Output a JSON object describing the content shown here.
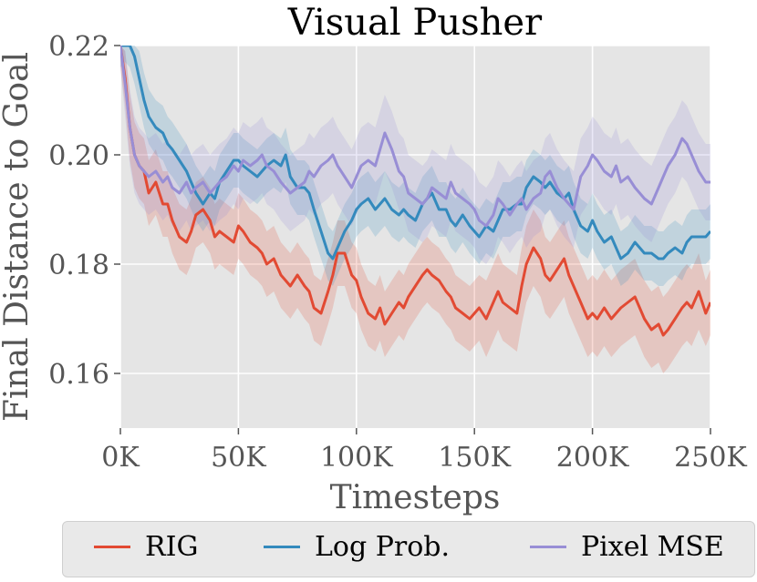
{
  "chart_data": {
    "type": "line",
    "title": "Visual Pusher",
    "xlabel": "Timesteps",
    "ylabel": "Final Distance to Goal",
    "xlim": [
      0,
      250000
    ],
    "ylim": [
      0.15,
      0.22
    ],
    "x_ticks": [
      0,
      50000,
      100000,
      150000,
      200000,
      250000
    ],
    "x_tick_labels": [
      "0K",
      "50K",
      "100K",
      "150K",
      "200K",
      "250K"
    ],
    "y_ticks": [
      0.16,
      0.18,
      0.2,
      0.22
    ],
    "y_tick_labels": [
      "0.16",
      "0.18",
      "0.20",
      "0.22"
    ],
    "grid": true,
    "legend_position": "bottom",
    "series": [
      {
        "name": "RIG",
        "color": "#e24a33",
        "x": [
          0,
          2,
          4,
          6,
          8,
          10,
          12,
          15,
          18,
          20,
          22,
          25,
          28,
          30,
          32,
          35,
          38,
          40,
          42,
          45,
          48,
          50,
          52,
          55,
          58,
          60,
          62,
          65,
          68,
          70,
          72,
          75,
          78,
          80,
          82,
          85,
          88,
          90,
          92,
          95,
          98,
          100,
          102,
          105,
          108,
          110,
          112,
          115,
          118,
          120,
          122,
          125,
          128,
          130,
          132,
          135,
          138,
          140,
          142,
          145,
          148,
          150,
          152,
          155,
          158,
          160,
          162,
          165,
          168,
          170,
          172,
          175,
          178,
          180,
          182,
          185,
          188,
          190,
          192,
          195,
          198,
          200,
          202,
          205,
          208,
          210,
          212,
          215,
          218,
          220,
          222,
          225,
          228,
          230,
          232,
          235,
          238,
          240,
          242,
          245,
          248,
          250
        ],
        "values": [
          0.22,
          0.214,
          0.205,
          0.2,
          0.198,
          0.197,
          0.193,
          0.195,
          0.191,
          0.191,
          0.188,
          0.185,
          0.184,
          0.186,
          0.189,
          0.19,
          0.188,
          0.185,
          0.186,
          0.185,
          0.184,
          0.187,
          0.186,
          0.184,
          0.183,
          0.182,
          0.18,
          0.181,
          0.178,
          0.177,
          0.176,
          0.178,
          0.176,
          0.175,
          0.172,
          0.171,
          0.175,
          0.178,
          0.182,
          0.182,
          0.178,
          0.177,
          0.174,
          0.171,
          0.17,
          0.172,
          0.169,
          0.171,
          0.173,
          0.172,
          0.174,
          0.176,
          0.178,
          0.179,
          0.178,
          0.177,
          0.175,
          0.174,
          0.172,
          0.171,
          0.17,
          0.171,
          0.172,
          0.17,
          0.173,
          0.175,
          0.173,
          0.172,
          0.171,
          0.176,
          0.18,
          0.183,
          0.181,
          0.178,
          0.177,
          0.179,
          0.181,
          0.178,
          0.176,
          0.173,
          0.17,
          0.171,
          0.17,
          0.172,
          0.17,
          0.171,
          0.172,
          0.173,
          0.174,
          0.172,
          0.17,
          0.168,
          0.169,
          0.167,
          0.168,
          0.17,
          0.172,
          0.173,
          0.172,
          0.175,
          0.171,
          0.173
        ],
        "band": [
          0.004,
          0.005,
          0.006,
          0.006,
          0.006,
          0.006,
          0.006,
          0.006,
          0.006,
          0.006,
          0.006,
          0.006,
          0.006,
          0.006,
          0.006,
          0.006,
          0.006,
          0.006,
          0.006,
          0.006,
          0.006,
          0.006,
          0.006,
          0.006,
          0.006,
          0.006,
          0.006,
          0.006,
          0.006,
          0.006,
          0.006,
          0.006,
          0.006,
          0.006,
          0.006,
          0.006,
          0.006,
          0.006,
          0.006,
          0.006,
          0.006,
          0.006,
          0.006,
          0.006,
          0.006,
          0.006,
          0.006,
          0.006,
          0.006,
          0.006,
          0.006,
          0.006,
          0.006,
          0.006,
          0.006,
          0.006,
          0.006,
          0.006,
          0.006,
          0.006,
          0.006,
          0.006,
          0.006,
          0.007,
          0.007,
          0.007,
          0.007,
          0.007,
          0.007,
          0.007,
          0.007,
          0.007,
          0.007,
          0.007,
          0.007,
          0.007,
          0.007,
          0.007,
          0.007,
          0.007,
          0.007,
          0.007,
          0.007,
          0.007,
          0.007,
          0.007,
          0.007,
          0.007,
          0.007,
          0.007,
          0.007,
          0.007,
          0.007,
          0.007,
          0.007,
          0.007,
          0.007,
          0.007,
          0.007,
          0.007,
          0.006,
          0.006
        ]
      },
      {
        "name": "Log Prob.",
        "color": "#348abd",
        "x": [
          0,
          2,
          4,
          6,
          8,
          10,
          12,
          15,
          18,
          20,
          22,
          25,
          28,
          30,
          32,
          35,
          38,
          40,
          42,
          45,
          48,
          50,
          52,
          55,
          58,
          60,
          62,
          65,
          68,
          70,
          72,
          75,
          78,
          80,
          82,
          85,
          88,
          90,
          92,
          95,
          98,
          100,
          102,
          105,
          108,
          110,
          112,
          115,
          118,
          120,
          122,
          125,
          128,
          130,
          132,
          135,
          138,
          140,
          142,
          145,
          148,
          150,
          152,
          155,
          158,
          160,
          162,
          165,
          168,
          170,
          172,
          175,
          178,
          180,
          182,
          185,
          188,
          190,
          192,
          195,
          198,
          200,
          202,
          205,
          208,
          210,
          212,
          215,
          218,
          220,
          222,
          225,
          228,
          230,
          232,
          235,
          238,
          240,
          242,
          245,
          248,
          250
        ],
        "values": [
          0.22,
          0.222,
          0.221,
          0.218,
          0.214,
          0.21,
          0.207,
          0.205,
          0.204,
          0.202,
          0.201,
          0.199,
          0.197,
          0.195,
          0.193,
          0.191,
          0.193,
          0.192,
          0.195,
          0.197,
          0.199,
          0.199,
          0.198,
          0.197,
          0.196,
          0.197,
          0.198,
          0.199,
          0.198,
          0.2,
          0.196,
          0.194,
          0.194,
          0.193,
          0.19,
          0.186,
          0.182,
          0.181,
          0.183,
          0.186,
          0.188,
          0.19,
          0.191,
          0.192,
          0.19,
          0.191,
          0.192,
          0.19,
          0.189,
          0.19,
          0.189,
          0.188,
          0.191,
          0.192,
          0.193,
          0.19,
          0.19,
          0.188,
          0.187,
          0.189,
          0.187,
          0.186,
          0.185,
          0.187,
          0.186,
          0.188,
          0.19,
          0.19,
          0.191,
          0.191,
          0.194,
          0.196,
          0.195,
          0.194,
          0.195,
          0.193,
          0.192,
          0.193,
          0.19,
          0.187,
          0.186,
          0.188,
          0.186,
          0.184,
          0.185,
          0.183,
          0.181,
          0.182,
          0.184,
          0.183,
          0.182,
          0.182,
          0.181,
          0.181,
          0.182,
          0.183,
          0.182,
          0.184,
          0.185,
          0.185,
          0.185,
          0.186
        ],
        "band": [
          0.004,
          0.005,
          0.005,
          0.005,
          0.005,
          0.005,
          0.005,
          0.005,
          0.005,
          0.005,
          0.005,
          0.005,
          0.005,
          0.005,
          0.005,
          0.005,
          0.005,
          0.005,
          0.005,
          0.005,
          0.005,
          0.005,
          0.005,
          0.005,
          0.005,
          0.005,
          0.005,
          0.005,
          0.005,
          0.005,
          0.005,
          0.005,
          0.005,
          0.005,
          0.005,
          0.005,
          0.005,
          0.005,
          0.005,
          0.005,
          0.005,
          0.005,
          0.005,
          0.005,
          0.005,
          0.005,
          0.005,
          0.005,
          0.005,
          0.005,
          0.005,
          0.005,
          0.005,
          0.005,
          0.005,
          0.005,
          0.005,
          0.005,
          0.005,
          0.005,
          0.005,
          0.005,
          0.005,
          0.005,
          0.005,
          0.005,
          0.005,
          0.005,
          0.005,
          0.005,
          0.005,
          0.005,
          0.005,
          0.005,
          0.005,
          0.005,
          0.005,
          0.005,
          0.005,
          0.005,
          0.005,
          0.005,
          0.005,
          0.005,
          0.005,
          0.005,
          0.005,
          0.005,
          0.005,
          0.005,
          0.005,
          0.005,
          0.005,
          0.005,
          0.005,
          0.005,
          0.005,
          0.005,
          0.005,
          0.005,
          0.005,
          0.005
        ]
      },
      {
        "name": "Pixel MSE",
        "color": "#988ed5",
        "x": [
          0,
          2,
          4,
          6,
          8,
          10,
          12,
          15,
          18,
          20,
          22,
          25,
          28,
          30,
          32,
          35,
          38,
          40,
          42,
          45,
          48,
          50,
          52,
          55,
          58,
          60,
          62,
          65,
          68,
          70,
          72,
          75,
          78,
          80,
          82,
          85,
          88,
          90,
          92,
          95,
          98,
          100,
          102,
          105,
          108,
          110,
          112,
          115,
          118,
          120,
          122,
          125,
          128,
          130,
          132,
          135,
          138,
          140,
          142,
          145,
          148,
          150,
          152,
          155,
          158,
          160,
          162,
          165,
          168,
          170,
          172,
          175,
          178,
          180,
          182,
          185,
          188,
          190,
          192,
          195,
          198,
          200,
          202,
          205,
          208,
          210,
          212,
          215,
          218,
          220,
          222,
          225,
          228,
          230,
          232,
          235,
          238,
          240,
          242,
          245,
          248,
          250
        ],
        "values": [
          0.22,
          0.213,
          0.205,
          0.2,
          0.198,
          0.197,
          0.196,
          0.197,
          0.195,
          0.196,
          0.194,
          0.193,
          0.195,
          0.193,
          0.194,
          0.195,
          0.193,
          0.194,
          0.195,
          0.196,
          0.198,
          0.197,
          0.199,
          0.198,
          0.199,
          0.2,
          0.198,
          0.197,
          0.195,
          0.194,
          0.193,
          0.194,
          0.195,
          0.197,
          0.196,
          0.198,
          0.199,
          0.2,
          0.198,
          0.196,
          0.194,
          0.196,
          0.198,
          0.199,
          0.198,
          0.201,
          0.204,
          0.201,
          0.197,
          0.196,
          0.193,
          0.192,
          0.191,
          0.192,
          0.194,
          0.193,
          0.192,
          0.195,
          0.193,
          0.192,
          0.191,
          0.19,
          0.188,
          0.187,
          0.189,
          0.192,
          0.191,
          0.189,
          0.191,
          0.192,
          0.19,
          0.192,
          0.193,
          0.196,
          0.197,
          0.194,
          0.192,
          0.191,
          0.19,
          0.196,
          0.198,
          0.2,
          0.199,
          0.197,
          0.196,
          0.198,
          0.195,
          0.196,
          0.194,
          0.193,
          0.192,
          0.191,
          0.194,
          0.196,
          0.198,
          0.2,
          0.203,
          0.202,
          0.2,
          0.197,
          0.195,
          0.195
        ],
        "band": [
          0.004,
          0.006,
          0.007,
          0.007,
          0.007,
          0.007,
          0.007,
          0.007,
          0.007,
          0.007,
          0.007,
          0.007,
          0.007,
          0.007,
          0.007,
          0.007,
          0.007,
          0.007,
          0.007,
          0.007,
          0.007,
          0.007,
          0.007,
          0.007,
          0.007,
          0.007,
          0.007,
          0.007,
          0.007,
          0.007,
          0.007,
          0.007,
          0.007,
          0.007,
          0.007,
          0.007,
          0.007,
          0.007,
          0.007,
          0.007,
          0.007,
          0.007,
          0.007,
          0.007,
          0.007,
          0.007,
          0.007,
          0.007,
          0.007,
          0.007,
          0.007,
          0.007,
          0.007,
          0.007,
          0.007,
          0.007,
          0.007,
          0.007,
          0.007,
          0.007,
          0.007,
          0.007,
          0.007,
          0.007,
          0.007,
          0.007,
          0.007,
          0.007,
          0.007,
          0.007,
          0.007,
          0.007,
          0.007,
          0.007,
          0.007,
          0.007,
          0.007,
          0.007,
          0.007,
          0.007,
          0.007,
          0.007,
          0.007,
          0.007,
          0.007,
          0.007,
          0.007,
          0.007,
          0.007,
          0.007,
          0.007,
          0.007,
          0.007,
          0.007,
          0.007,
          0.007,
          0.007,
          0.007,
          0.007,
          0.007,
          0.007,
          0.007
        ]
      }
    ]
  }
}
